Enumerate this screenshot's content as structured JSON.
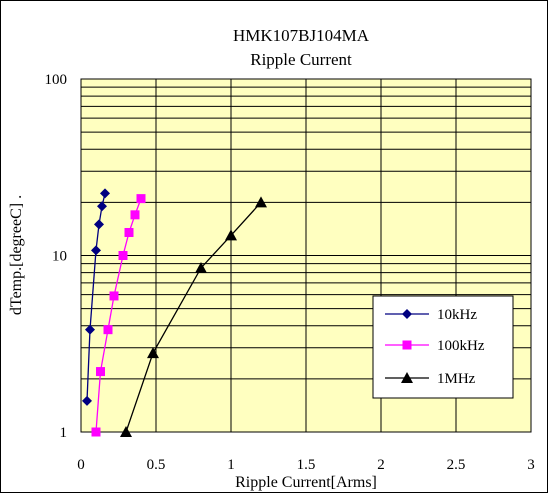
{
  "chart_data": {
    "type": "scatter",
    "title": "HMK107BJ104MA",
    "subtitle": "Ripple Current",
    "xlabel": "Ripple Current[Arms]",
    "ylabel": "dTemp.[degreeC] .",
    "xlim": [
      0,
      3
    ],
    "ylim": [
      1,
      100
    ],
    "yscale": "log",
    "x_ticks": [
      "0",
      "0.5",
      "1",
      "1.5",
      "2",
      "2.5",
      "3"
    ],
    "y_ticks": [
      "1",
      "10",
      "100"
    ],
    "grid": true,
    "legend_position": "bottom-right",
    "plot_background": "#ffffc0",
    "series": [
      {
        "name": "10kHz",
        "color": "#000080",
        "marker": "diamond",
        "points": [
          [
            0.04,
            1.5
          ],
          [
            0.06,
            3.8
          ],
          [
            0.1,
            10.7
          ],
          [
            0.12,
            15
          ],
          [
            0.14,
            19
          ],
          [
            0.16,
            22.5
          ]
        ]
      },
      {
        "name": "100kHz",
        "color": "#ff00ff",
        "marker": "square",
        "points": [
          [
            0.1,
            1
          ],
          [
            0.13,
            2.2
          ],
          [
            0.18,
            3.8
          ],
          [
            0.22,
            5.9
          ],
          [
            0.28,
            10
          ],
          [
            0.32,
            13.5
          ],
          [
            0.36,
            17
          ],
          [
            0.4,
            21
          ]
        ]
      },
      {
        "name": "1MHz",
        "color": "#000000",
        "marker": "triangle",
        "points": [
          [
            0.3,
            1
          ],
          [
            0.48,
            2.8
          ],
          [
            0.8,
            8.5
          ],
          [
            1.0,
            13
          ],
          [
            1.2,
            20
          ]
        ]
      }
    ]
  }
}
